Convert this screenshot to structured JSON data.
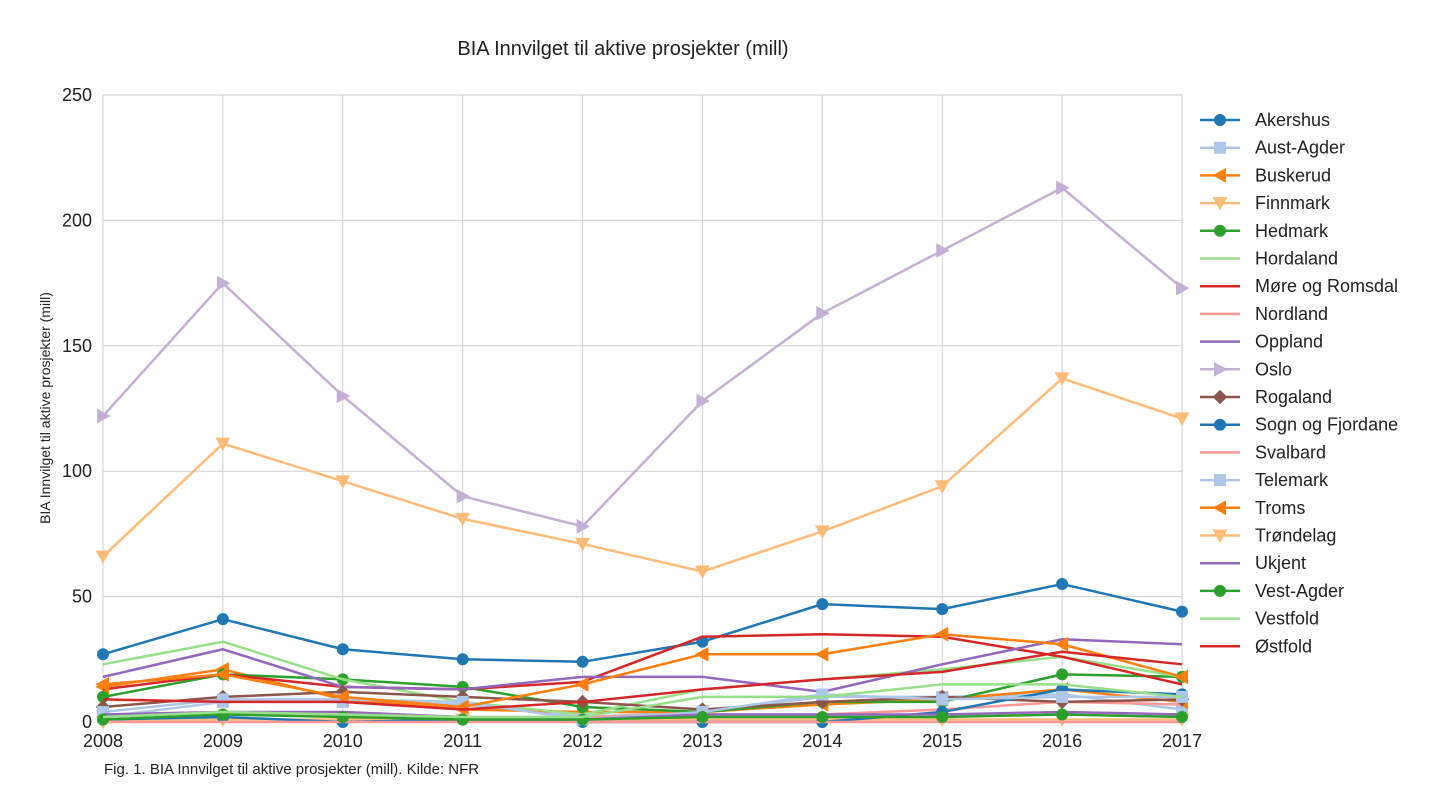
{
  "chart_data": {
    "type": "line",
    "title": "BIA Innvilget til aktive prosjekter (mill)",
    "ylabel": "BIA Innvilget til aktive prosjekter (mill)",
    "xlabel": "",
    "x": [
      "2008",
      "2009",
      "2010",
      "2011",
      "2012",
      "2013",
      "2014",
      "2015",
      "2016",
      "2017"
    ],
    "xlim": [
      2008,
      2017
    ],
    "ylim": [
      0,
      250
    ],
    "yticks": [
      "0",
      "50",
      "100",
      "150",
      "200",
      "250"
    ],
    "grid": true,
    "legend_position": "right",
    "series": [
      {
        "name": "Akershus",
        "color": "#1f77b4",
        "marker": "o",
        "values": [
          27,
          41,
          29,
          25,
          24,
          32,
          47,
          45,
          55,
          44
        ]
      },
      {
        "name": "Aust-Agder",
        "color": "#aec7e8",
        "marker": "s",
        "values": [
          2,
          8,
          8,
          7,
          2,
          4,
          10,
          10,
          11,
          5
        ]
      },
      {
        "name": "Buskerud",
        "color": "#ff7f0e",
        "marker": "<",
        "values": [
          14,
          21,
          9,
          5,
          4,
          4,
          7,
          9,
          13,
          8
        ]
      },
      {
        "name": "Finnmark",
        "color": "#ffbb78",
        "marker": "v",
        "values": [
          0,
          1,
          1,
          1,
          1,
          1,
          1,
          1,
          1,
          1
        ]
      },
      {
        "name": "Hedmark",
        "color": "#2ca02c",
        "marker": "o",
        "values": [
          10,
          19,
          17,
          14,
          6,
          4,
          8,
          8,
          19,
          18
        ]
      },
      {
        "name": "Hordaland",
        "color": "#98df8a",
        "marker": "",
        "values": [
          23,
          32,
          17,
          8,
          3,
          13,
          17,
          21,
          26,
          18
        ]
      },
      {
        "name": "Møre og Romsdal",
        "color": "#d62728",
        "marker": "",
        "values": [
          13,
          19,
          14,
          13,
          16,
          34,
          35,
          34,
          26,
          15
        ]
      },
      {
        "name": "Nordland",
        "color": "#ff9896",
        "marker": "",
        "values": [
          3,
          4,
          2,
          2,
          2,
          3,
          3,
          5,
          8,
          7
        ]
      },
      {
        "name": "Oppland",
        "color": "#9467bd",
        "marker": "",
        "values": [
          18,
          29,
          14,
          13,
          18,
          18,
          12,
          23,
          33,
          31
        ]
      },
      {
        "name": "Oslo",
        "color": "#c5b0d5",
        "marker": ">",
        "values": [
          122,
          175,
          130,
          90,
          78,
          128,
          163,
          188,
          213,
          173
        ]
      },
      {
        "name": "Rogaland",
        "color": "#8c564b",
        "marker": "D",
        "values": [
          6,
          10,
          12,
          10,
          8,
          5,
          8,
          10,
          8,
          9
        ]
      },
      {
        "name": "Sogn og Fjordane",
        "color": "#1f77b4",
        "marker": "o",
        "values": [
          1,
          2,
          0,
          1,
          0,
          0,
          0,
          4,
          13,
          11
        ]
      },
      {
        "name": "Svalbard",
        "color": "#ff9896",
        "marker": "",
        "values": [
          0,
          0,
          0,
          0,
          0,
          0,
          0,
          0,
          0,
          0
        ]
      },
      {
        "name": "Telemark",
        "color": "#aec7e8",
        "marker": "s",
        "values": [
          4,
          9,
          9,
          8,
          1,
          4,
          11,
          9,
          10,
          10
        ]
      },
      {
        "name": "Troms",
        "color": "#ff7f0e",
        "marker": "<",
        "values": [
          15,
          19,
          10,
          6,
          15,
          27,
          27,
          35,
          31,
          18
        ]
      },
      {
        "name": "Trøndelag",
        "color": "#ffbb78",
        "marker": "v",
        "values": [
          66,
          111,
          96,
          81,
          71,
          60,
          76,
          94,
          137,
          121
        ]
      },
      {
        "name": "Ukjent",
        "color": "#9467bd",
        "marker": "",
        "values": [
          3,
          4,
          4,
          2,
          1,
          3,
          3,
          3,
          4,
          3
        ]
      },
      {
        "name": "Vest-Agder",
        "color": "#2ca02c",
        "marker": "o",
        "values": [
          1,
          3,
          2,
          1,
          1,
          2,
          2,
          2,
          3,
          2
        ]
      },
      {
        "name": "Vestfold",
        "color": "#98df8a",
        "marker": "",
        "values": [
          2,
          4,
          3,
          2,
          2,
          10,
          10,
          15,
          15,
          10
        ]
      },
      {
        "name": "Østfold",
        "color": "#d62728",
        "marker": "",
        "values": [
          9,
          8,
          8,
          5,
          8,
          13,
          17,
          20,
          28,
          23
        ]
      }
    ]
  },
  "caption": "Fig. 1. BIA Innvilget til aktive prosjekter (mill). Kilde: NFR"
}
